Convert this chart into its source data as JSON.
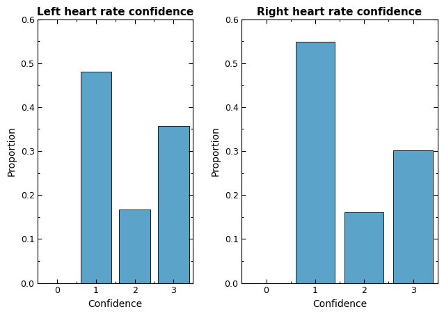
{
  "left": {
    "title": "Left heart rate confidence",
    "values": [
      0.0,
      0.48,
      0.167,
      0.357
    ],
    "categories": [
      0,
      1,
      2,
      3
    ],
    "xlabel": "Confidence",
    "ylabel": "Proportion",
    "ylim": [
      0,
      0.6
    ],
    "yticks": [
      0,
      0.1,
      0.2,
      0.3,
      0.4,
      0.5,
      0.6
    ]
  },
  "right": {
    "title": "Right heart rate confidence",
    "values": [
      0.0,
      0.548,
      0.161,
      0.302
    ],
    "categories": [
      0,
      1,
      2,
      3
    ],
    "xlabel": "Confidence",
    "ylabel": "Proportion",
    "ylim": [
      0,
      0.6
    ],
    "yticks": [
      0,
      0.1,
      0.2,
      0.3,
      0.4,
      0.5,
      0.6
    ]
  },
  "bar_color": "#5ba3c9",
  "bar_edgecolor": "#000000",
  "bar_width": 0.8,
  "background_color": "#ffffff",
  "title_fontsize": 11,
  "label_fontsize": 10,
  "tick_fontsize": 9
}
